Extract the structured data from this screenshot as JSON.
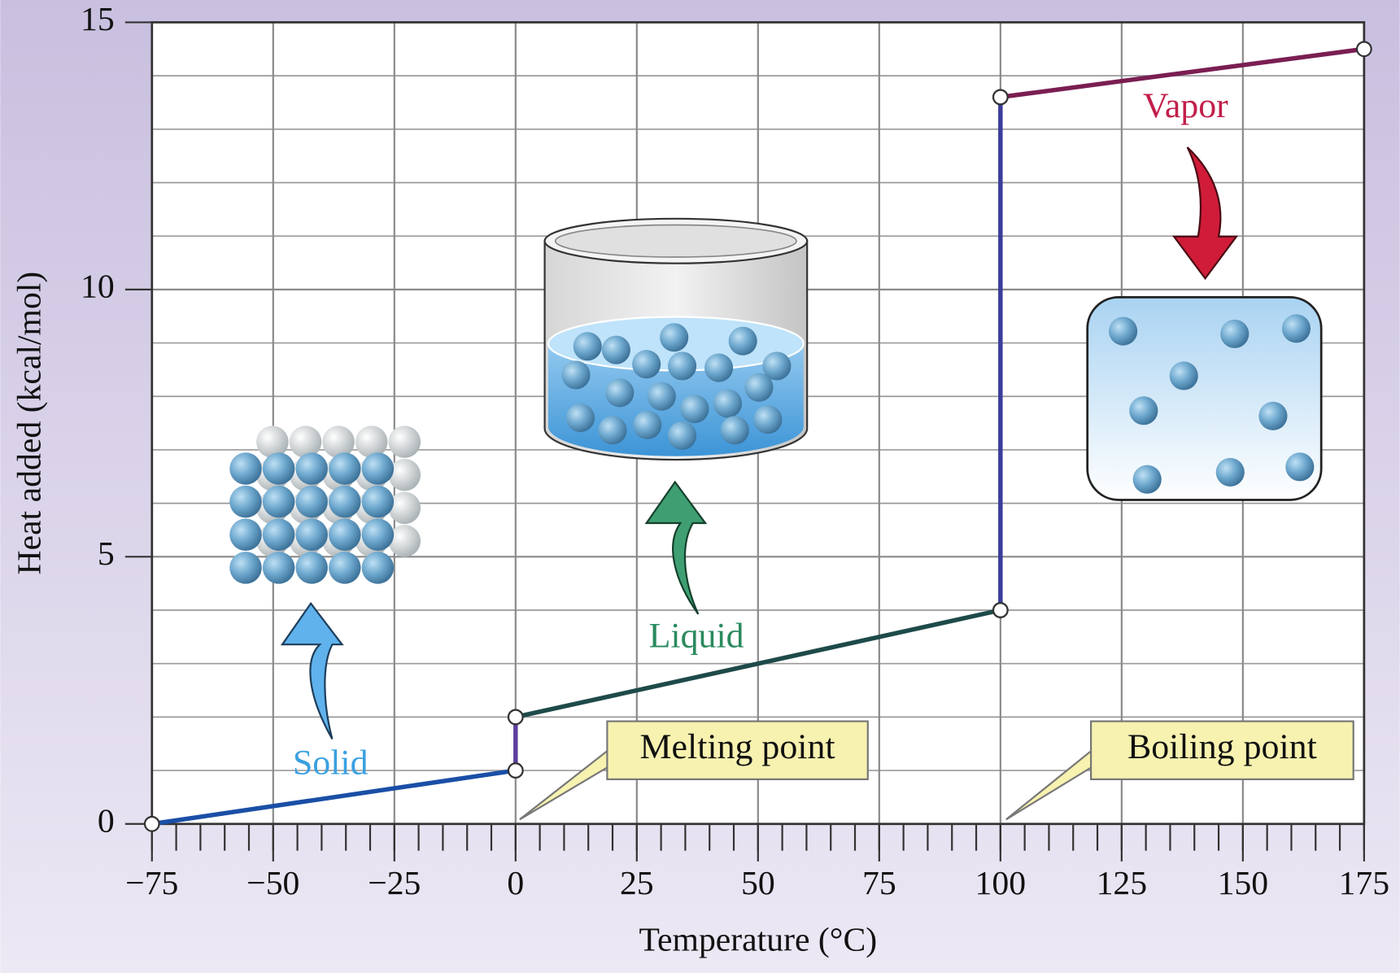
{
  "chart_data": {
    "type": "line",
    "xlabel": "Temperature (°C)",
    "ylabel": "Heat added (kcal/mol)",
    "xlim": [
      -75,
      175
    ],
    "ylim": [
      0,
      15
    ],
    "xticks": [
      {
        "value": -75,
        "label": "−75"
      },
      {
        "value": -50,
        "label": "−50"
      },
      {
        "value": -25,
        "label": "−25"
      },
      0,
      25,
      50,
      75,
      100,
      125,
      150,
      175
    ],
    "yticks": [
      0,
      5,
      10,
      15
    ],
    "x_minor_step": 5,
    "y_grid_step": 1,
    "grid": true,
    "segments": [
      {
        "x": [
          -75,
          0
        ],
        "values": [
          0,
          1
        ],
        "color": "#1a4fa6"
      },
      {
        "x": [
          0,
          0
        ],
        "values": [
          1,
          2
        ],
        "color": "#5b3f9e"
      },
      {
        "x": [
          0,
          100
        ],
        "values": [
          2,
          4
        ],
        "color": "#1e4a4a"
      },
      {
        "x": [
          100,
          100
        ],
        "values": [
          4,
          13.6
        ],
        "color": "#3b3d9a"
      },
      {
        "x": [
          100,
          175
        ],
        "values": [
          13.6,
          14.5
        ],
        "color": "#7a1e52"
      }
    ],
    "annotations": [
      {
        "text": "Solid",
        "color": "#3aa0e0"
      },
      {
        "text": "Liquid",
        "color": "#2a8a5e"
      },
      {
        "text": "Vapor",
        "color": "#c21f4a"
      },
      {
        "text": "Melting point",
        "color": "#111111"
      },
      {
        "text": "Boiling point",
        "color": "#111111"
      }
    ]
  }
}
